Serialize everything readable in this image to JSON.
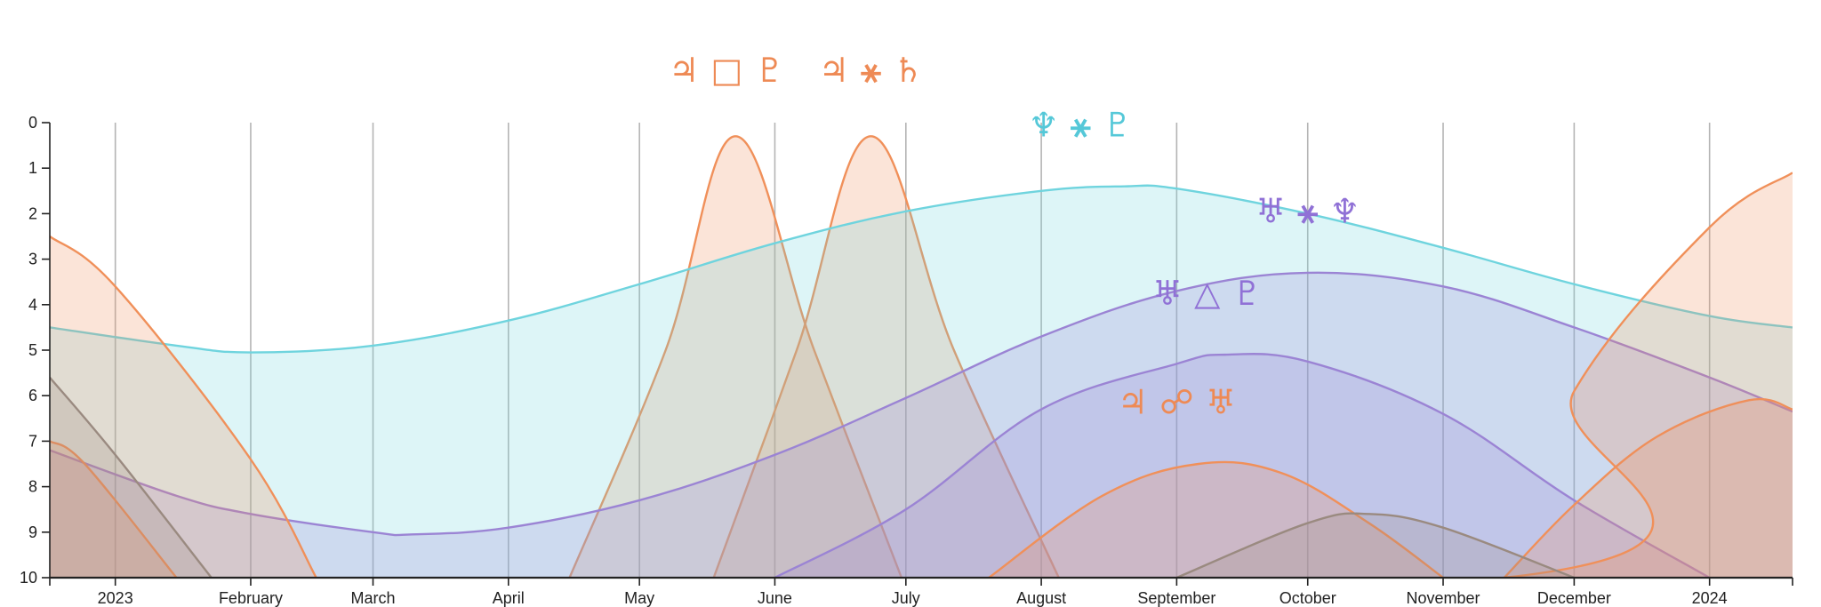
{
  "chart_data": {
    "type": "area",
    "title": "",
    "xlabel": "",
    "ylabel": "",
    "x_tick_labels": [
      "2023",
      "February",
      "March",
      "April",
      "May",
      "June",
      "July",
      "August",
      "September",
      "October",
      "November",
      "December",
      "2024"
    ],
    "x_tick_dates": [
      "2023-01-01",
      "2023-02-01",
      "2023-03-01",
      "2023-04-01",
      "2023-05-01",
      "2023-06-01",
      "2023-07-01",
      "2023-08-01",
      "2023-09-01",
      "2023-10-01",
      "2023-11-01",
      "2023-12-01",
      "2024-01-01"
    ],
    "x_range": [
      "2022-12-17",
      "2024-01-20"
    ],
    "y_tick_labels": [
      "0",
      "1",
      "2",
      "3",
      "4",
      "5",
      "6",
      "7",
      "8",
      "9",
      "10"
    ],
    "y_range": [
      0,
      10
    ],
    "y_inverted": true,
    "grid": "vertical",
    "series": [
      {
        "label": "♃ □ ♇",
        "color": "#f0905a",
        "label_color": "#ee8a55",
        "points": [
          [
            "2023-04-15",
            10
          ],
          [
            "2023-05-07",
            5
          ],
          [
            "2023-05-23",
            0.3
          ],
          [
            "2023-06-10",
            5
          ],
          [
            "2023-06-30",
            10
          ]
        ]
      },
      {
        "label": "♃ ⚹ ♄",
        "color": "#f0905a",
        "label_color": "#ee8a55",
        "points": [
          [
            "2023-05-18",
            10
          ],
          [
            "2023-06-06",
            5
          ],
          [
            "2023-06-23",
            0.3
          ],
          [
            "2023-07-12",
            5
          ],
          [
            "2023-08-05",
            10
          ]
        ]
      },
      {
        "label": "♆ ⚹ ♇",
        "color": "#6fd4de",
        "label_color": "#55c8d8",
        "points": [
          [
            "2022-12-17",
            4.5
          ],
          [
            "2023-01-15",
            4.9
          ],
          [
            "2023-02-01",
            5.05
          ],
          [
            "2023-03-01",
            4.9
          ],
          [
            "2023-04-01",
            4.35
          ],
          [
            "2023-05-01",
            3.55
          ],
          [
            "2023-06-01",
            2.65
          ],
          [
            "2023-07-01",
            1.95
          ],
          [
            "2023-08-01",
            1.5
          ],
          [
            "2023-08-20",
            1.4
          ],
          [
            "2023-09-01",
            1.45
          ],
          [
            "2023-10-01",
            2.0
          ],
          [
            "2023-11-01",
            2.75
          ],
          [
            "2023-12-01",
            3.55
          ],
          [
            "2024-01-01",
            4.25
          ],
          [
            "2024-01-20",
            4.5
          ]
        ]
      },
      {
        "label": "♅ ⚹ ♆",
        "color": "#9b84d4",
        "label_color": "#9071d6",
        "points": [
          [
            "2022-12-17",
            7.2
          ],
          [
            "2023-01-15",
            8.2
          ],
          [
            "2023-02-01",
            8.6
          ],
          [
            "2023-03-01",
            9.0
          ],
          [
            "2023-03-10",
            9.05
          ],
          [
            "2023-04-01",
            8.9
          ],
          [
            "2023-05-01",
            8.3
          ],
          [
            "2023-06-01",
            7.3
          ],
          [
            "2023-07-01",
            6.05
          ],
          [
            "2023-08-01",
            4.7
          ],
          [
            "2023-09-01",
            3.7
          ],
          [
            "2023-10-01",
            3.3
          ],
          [
            "2023-11-01",
            3.6
          ],
          [
            "2023-12-01",
            4.5
          ],
          [
            "2024-01-01",
            5.6
          ],
          [
            "2024-01-20",
            6.35
          ]
        ]
      },
      {
        "label": "♅ △ ♇",
        "color": "#9b84d4",
        "label_color": "#9071d6",
        "points": [
          [
            "2023-06-01",
            10
          ],
          [
            "2023-07-01",
            8.5
          ],
          [
            "2023-08-01",
            6.3
          ],
          [
            "2023-09-01",
            5.3
          ],
          [
            "2023-09-12",
            5.1
          ],
          [
            "2023-10-01",
            5.25
          ],
          [
            "2023-11-01",
            6.4
          ],
          [
            "2023-12-01",
            8.3
          ],
          [
            "2024-01-01",
            10
          ]
        ]
      },
      {
        "label": "♃ ☍ ♅",
        "color": "#f0905a",
        "label_color": "#ee8a55",
        "points": [
          [
            "2023-07-20",
            10
          ],
          [
            "2023-08-15",
            8.2
          ],
          [
            "2023-09-06",
            7.5
          ],
          [
            "2023-09-25",
            7.7
          ],
          [
            "2023-10-15",
            8.8
          ],
          [
            "2023-11-01",
            10
          ]
        ]
      },
      {
        "label": "",
        "color": "#f0905a",
        "label_color": "#ee8a55",
        "points": [
          [
            "2023-11-15",
            10
          ],
          [
            "2023-12-01",
            8.4
          ],
          [
            "2023-12-20",
            6.9
          ],
          [
            "2024-01-10",
            6.1
          ],
          [
            "2024-01-20",
            6.3
          ]
        ]
      },
      {
        "label": "",
        "color": "#f0905a",
        "label_color": "#ee8a55",
        "points": [
          [
            "2022-12-17",
            2.5
          ],
          [
            "2023-01-01",
            3.6
          ],
          [
            "2023-02-01",
            7.4
          ],
          [
            "2023-02-16",
            10
          ]
        ]
      },
      {
        "label": "",
        "color": "#f0905a",
        "label_color": "#ee8a55",
        "points": [
          [
            "2022-11-01",
            10
          ],
          [
            "2023-11-15",
            10
          ],
          [
            "2023-12-01",
            5.9
          ],
          [
            "2024-01-01",
            2.3
          ],
          [
            "2024-01-20",
            1.1
          ]
        ]
      },
      {
        "label": "",
        "color": "#f0905a",
        "label_color": "#ee8a55",
        "points": [
          [
            "2022-12-17",
            7.0
          ],
          [
            "2022-12-25",
            7.5
          ],
          [
            "2023-01-15",
            10
          ]
        ]
      },
      {
        "label": "",
        "color": "#9a8a80",
        "label_color": "#9a8a80",
        "points": [
          [
            "2022-12-17",
            5.6
          ],
          [
            "2023-01-01",
            7.3
          ],
          [
            "2023-01-23",
            10
          ]
        ]
      },
      {
        "label": "",
        "color": "#9a8a80",
        "label_color": "#9a8a80",
        "points": [
          [
            "2023-09-01",
            10
          ],
          [
            "2023-10-01",
            8.8
          ],
          [
            "2023-10-15",
            8.6
          ],
          [
            "2023-11-01",
            8.9
          ],
          [
            "2023-12-01",
            10
          ]
        ]
      }
    ],
    "labels": [
      {
        "text": "♃ □ ♇",
        "date": "2023-05-21",
        "y": -0.9,
        "color": "#ee8a55"
      },
      {
        "text": "♃ ⚹ ♄",
        "date": "2023-06-23",
        "y": -0.9,
        "color": "#ee8a55"
      },
      {
        "text": "♆ ⚹ ♇",
        "date": "2023-08-10",
        "y": 0.3,
        "color": "#55c8d8"
      },
      {
        "text": "♅ ⚹ ♆",
        "date": "2023-10-01",
        "y": 2.2,
        "color": "#9071d6"
      },
      {
        "text": "♅ △ ♇",
        "date": "2023-09-08",
        "y": 4.0,
        "color": "#9071d6"
      },
      {
        "text": "♃ ☍ ♅",
        "date": "2023-09-01",
        "y": 6.4,
        "color": "#ee8a55"
      }
    ]
  }
}
